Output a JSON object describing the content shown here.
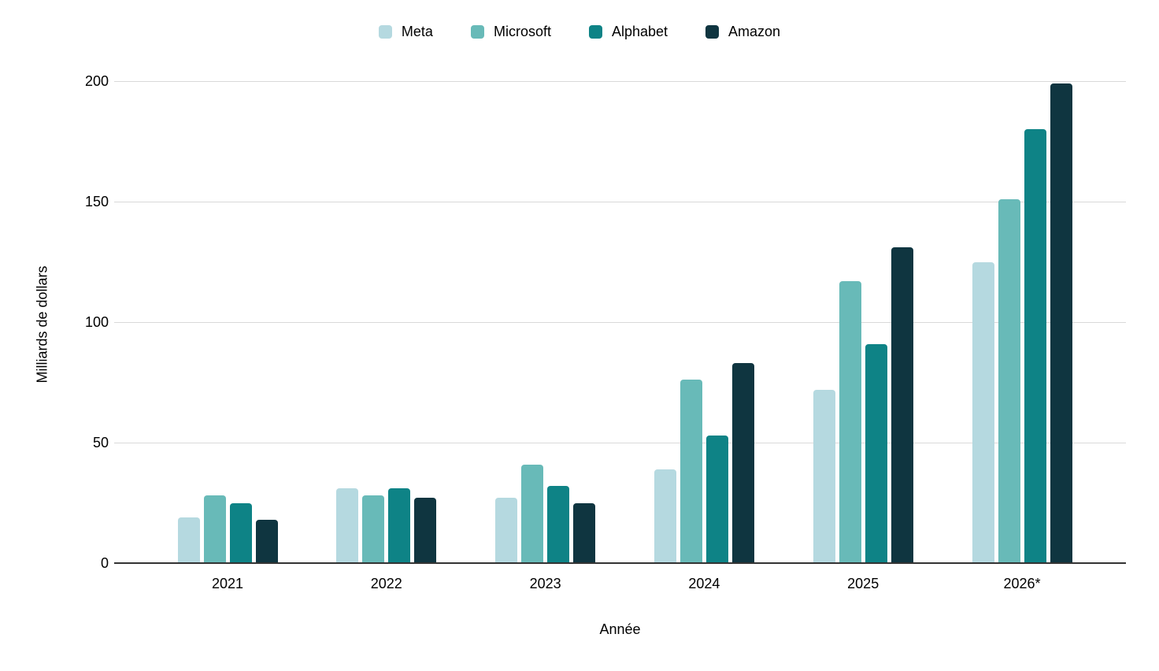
{
  "chart_data": {
    "type": "bar",
    "categories": [
      "2021",
      "2022",
      "2023",
      "2024",
      "2025",
      "2026*"
    ],
    "series": [
      {
        "name": "Meta",
        "color": "#b5d9e0",
        "values": [
          19,
          31,
          27,
          39,
          72,
          125
        ]
      },
      {
        "name": "Microsoft",
        "color": "#68bab8",
        "values": [
          28,
          28,
          41,
          76,
          117,
          151
        ]
      },
      {
        "name": "Alphabet",
        "color": "#0e8386",
        "values": [
          25,
          31,
          32,
          53,
          91,
          180
        ]
      },
      {
        "name": "Amazon",
        "color": "#0f3540",
        "values": [
          18,
          27,
          25,
          83,
          131,
          199
        ]
      }
    ],
    "xlabel": "Année",
    "ylabel": "Milliards de dollars",
    "ylim": [
      0,
      200
    ],
    "yticks": [
      0,
      50,
      100,
      150,
      200
    ],
    "grid": true,
    "legend_position": "top"
  },
  "style_colors": {
    "gridline": "#d9d9d9",
    "axis_line": "#333333",
    "text": "#000000",
    "background": "#ffffff"
  }
}
